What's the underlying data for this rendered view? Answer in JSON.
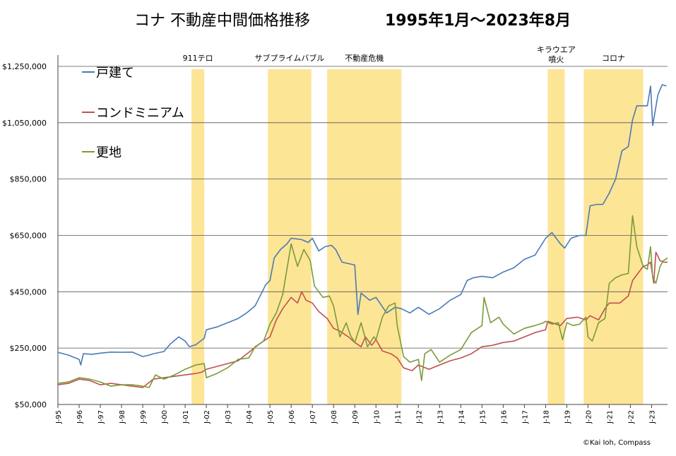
{
  "chart_data": {
    "type": "line",
    "title": "コナ 不動産中間価格推移",
    "subtitle": "1995年1月～2023年8月",
    "xlabel": "",
    "ylabel": "",
    "ylim": [
      50000,
      1290000
    ],
    "xlim": [
      1995.0,
      2023.75
    ],
    "yticks": [
      50000,
      250000,
      450000,
      650000,
      850000,
      1050000,
      1250000
    ],
    "ytick_labels": [
      "$50,000",
      "$250,000",
      "$450,000",
      "$650,000",
      "$850,000",
      "$1,050,000",
      "$1,250,000"
    ],
    "xtick_labels": [
      "J-95",
      "J-96",
      "J-97",
      "J-98",
      "J-99",
      "J-00",
      "J-01",
      "J-02",
      "J-03",
      "J-04",
      "J-05",
      "J-06",
      "J-07",
      "J-08",
      "J-09",
      "J-10",
      "J-11",
      "J-12",
      "J-13",
      "J-14",
      "J-15",
      "J-16",
      "J-17",
      "J-18",
      "J-19",
      "J-20",
      "J-21",
      "J-22",
      "J-23"
    ],
    "xtick_values": [
      1995,
      1996,
      1997,
      1998,
      1999,
      2000,
      2001,
      2002,
      2003,
      2004,
      2005,
      2006,
      2007,
      2008,
      2009,
      2010,
      2011,
      2012,
      2013,
      2014,
      2015,
      2016,
      2017,
      2018,
      2019,
      2020,
      2021,
      2022,
      2023
    ],
    "grid": true,
    "legend_position": "top-left",
    "bands": [
      {
        "label": "911テロ",
        "start": 2001.3,
        "end": 2001.9
      },
      {
        "label": "サブプライムバブル",
        "start": 2004.9,
        "end": 2006.95
      },
      {
        "label": "不動産危機",
        "start": 2007.7,
        "end": 2011.2
      },
      {
        "label": "キラウエア噴火",
        "start": 2018.1,
        "end": 2018.9
      },
      {
        "label": "コロナ",
        "start": 2019.8,
        "end": 2022.6
      }
    ],
    "series": [
      {
        "name": "戸建て",
        "color": "#4a7ab5",
        "points": [
          [
            1995,
            235000
          ],
          [
            1995.5,
            225000
          ],
          [
            1996,
            210000
          ],
          [
            1996.08,
            190000
          ],
          [
            1996.2,
            230000
          ],
          [
            1996.6,
            228000
          ],
          [
            1997,
            232000
          ],
          [
            1997.5,
            236000
          ],
          [
            1998,
            235000
          ],
          [
            1998.5,
            236000
          ],
          [
            1999,
            220000
          ],
          [
            1999.3,
            225000
          ],
          [
            1999.5,
            230000
          ],
          [
            2000,
            238000
          ],
          [
            2000.3,
            265000
          ],
          [
            2000.7,
            290000
          ],
          [
            2001,
            275000
          ],
          [
            2001.2,
            255000
          ],
          [
            2001.5,
            262000
          ],
          [
            2001.9,
            285000
          ],
          [
            2002,
            315000
          ],
          [
            2002.5,
            325000
          ],
          [
            2003,
            340000
          ],
          [
            2003.5,
            355000
          ],
          [
            2003.9,
            375000
          ],
          [
            2004.3,
            400000
          ],
          [
            2004.5,
            430000
          ],
          [
            2004.8,
            475000
          ],
          [
            2005,
            490000
          ],
          [
            2005.2,
            570000
          ],
          [
            2005.5,
            600000
          ],
          [
            2005.8,
            620000
          ],
          [
            2006,
            640000
          ],
          [
            2006.5,
            635000
          ],
          [
            2006.8,
            625000
          ],
          [
            2007,
            640000
          ],
          [
            2007.3,
            595000
          ],
          [
            2007.6,
            610000
          ],
          [
            2007.9,
            615000
          ],
          [
            2008.1,
            600000
          ],
          [
            2008.4,
            555000
          ],
          [
            2008.7,
            550000
          ],
          [
            2009,
            545000
          ],
          [
            2009.15,
            370000
          ],
          [
            2009.3,
            445000
          ],
          [
            2009.7,
            420000
          ],
          [
            2010,
            430000
          ],
          [
            2010.5,
            375000
          ],
          [
            2010.9,
            395000
          ],
          [
            2011.2,
            390000
          ],
          [
            2011.6,
            375000
          ],
          [
            2012,
            395000
          ],
          [
            2012.5,
            370000
          ],
          [
            2013,
            390000
          ],
          [
            2013.5,
            420000
          ],
          [
            2014,
            440000
          ],
          [
            2014.3,
            490000
          ],
          [
            2014.6,
            500000
          ],
          [
            2015,
            505000
          ],
          [
            2015.5,
            500000
          ],
          [
            2016,
            520000
          ],
          [
            2016.5,
            535000
          ],
          [
            2017,
            565000
          ],
          [
            2017.5,
            580000
          ],
          [
            2018,
            640000
          ],
          [
            2018.3,
            660000
          ],
          [
            2018.7,
            620000
          ],
          [
            2018.9,
            605000
          ],
          [
            2019.2,
            640000
          ],
          [
            2019.6,
            650000
          ],
          [
            2019.9,
            650000
          ],
          [
            2020.1,
            755000
          ],
          [
            2020.4,
            760000
          ],
          [
            2020.7,
            760000
          ],
          [
            2021,
            800000
          ],
          [
            2021.3,
            850000
          ],
          [
            2021.6,
            950000
          ],
          [
            2021.9,
            965000
          ],
          [
            2022.1,
            1060000
          ],
          [
            2022.3,
            1110000
          ],
          [
            2022.6,
            1110000
          ],
          [
            2022.8,
            1110000
          ],
          [
            2022.95,
            1180000
          ],
          [
            2023.05,
            1040000
          ],
          [
            2023.3,
            1150000
          ],
          [
            2023.5,
            1185000
          ],
          [
            2023.7,
            1180000
          ]
        ]
      },
      {
        "name": "コンドミニアム",
        "color": "#c0504d",
        "points": [
          [
            1995,
            120000
          ],
          [
            1995.5,
            125000
          ],
          [
            1996,
            140000
          ],
          [
            1996.5,
            135000
          ],
          [
            1997,
            120000
          ],
          [
            1997.5,
            125000
          ],
          [
            1998,
            120000
          ],
          [
            1998.5,
            115000
          ],
          [
            1999,
            110000
          ],
          [
            1999.5,
            140000
          ],
          [
            2000,
            145000
          ],
          [
            2000.5,
            150000
          ],
          [
            2001,
            155000
          ],
          [
            2001.5,
            160000
          ],
          [
            2001.8,
            165000
          ],
          [
            2002,
            175000
          ],
          [
            2002.5,
            185000
          ],
          [
            2003,
            195000
          ],
          [
            2003.5,
            205000
          ],
          [
            2004,
            235000
          ],
          [
            2004.5,
            265000
          ],
          [
            2005,
            290000
          ],
          [
            2005.3,
            350000
          ],
          [
            2005.6,
            390000
          ],
          [
            2006,
            430000
          ],
          [
            2006.3,
            410000
          ],
          [
            2006.5,
            450000
          ],
          [
            2006.7,
            420000
          ],
          [
            2007,
            410000
          ],
          [
            2007.3,
            380000
          ],
          [
            2007.7,
            355000
          ],
          [
            2008,
            320000
          ],
          [
            2008.3,
            310000
          ],
          [
            2008.7,
            290000
          ],
          [
            2009,
            270000
          ],
          [
            2009.3,
            255000
          ],
          [
            2009.5,
            290000
          ],
          [
            2009.8,
            260000
          ],
          [
            2010,
            280000
          ],
          [
            2010.3,
            240000
          ],
          [
            2010.7,
            230000
          ],
          [
            2011,
            215000
          ],
          [
            2011.3,
            180000
          ],
          [
            2011.7,
            170000
          ],
          [
            2012,
            190000
          ],
          [
            2012.5,
            175000
          ],
          [
            2013,
            190000
          ],
          [
            2013.5,
            205000
          ],
          [
            2014,
            215000
          ],
          [
            2014.5,
            230000
          ],
          [
            2015,
            255000
          ],
          [
            2015.5,
            260000
          ],
          [
            2016,
            270000
          ],
          [
            2016.5,
            275000
          ],
          [
            2017,
            290000
          ],
          [
            2017.5,
            305000
          ],
          [
            2018,
            315000
          ],
          [
            2018.1,
            345000
          ],
          [
            2018.3,
            340000
          ],
          [
            2018.7,
            330000
          ],
          [
            2019,
            355000
          ],
          [
            2019.5,
            360000
          ],
          [
            2019.9,
            350000
          ],
          [
            2020.1,
            365000
          ],
          [
            2020.5,
            350000
          ],
          [
            2020.8,
            390000
          ],
          [
            2021,
            410000
          ],
          [
            2021.5,
            410000
          ],
          [
            2021.9,
            435000
          ],
          [
            2022.1,
            490000
          ],
          [
            2022.3,
            510000
          ],
          [
            2022.6,
            540000
          ],
          [
            2022.8,
            545000
          ],
          [
            2022.95,
            555000
          ],
          [
            2023.1,
            480000
          ],
          [
            2023.2,
            590000
          ],
          [
            2023.4,
            560000
          ],
          [
            2023.6,
            555000
          ],
          [
            2023.75,
            555000
          ]
        ]
      },
      {
        "name": "更地",
        "color": "#7a9a3a",
        "points": [
          [
            1995,
            125000
          ],
          [
            1995.5,
            130000
          ],
          [
            1996,
            145000
          ],
          [
            1996.5,
            140000
          ],
          [
            1997,
            130000
          ],
          [
            1997.5,
            115000
          ],
          [
            1998,
            120000
          ],
          [
            1998.5,
            120000
          ],
          [
            1999,
            115000
          ],
          [
            1999.3,
            110000
          ],
          [
            1999.6,
            155000
          ],
          [
            2000,
            140000
          ],
          [
            2000.5,
            155000
          ],
          [
            2001,
            175000
          ],
          [
            2001.5,
            190000
          ],
          [
            2001.9,
            195000
          ],
          [
            2002,
            145000
          ],
          [
            2002.5,
            160000
          ],
          [
            2003,
            180000
          ],
          [
            2003.5,
            210000
          ],
          [
            2004,
            215000
          ],
          [
            2004.3,
            255000
          ],
          [
            2004.7,
            275000
          ],
          [
            2005,
            335000
          ],
          [
            2005.3,
            375000
          ],
          [
            2005.6,
            440000
          ],
          [
            2006,
            620000
          ],
          [
            2006.3,
            540000
          ],
          [
            2006.6,
            600000
          ],
          [
            2006.9,
            560000
          ],
          [
            2007.1,
            470000
          ],
          [
            2007.5,
            430000
          ],
          [
            2007.8,
            435000
          ],
          [
            2008,
            400000
          ],
          [
            2008.3,
            290000
          ],
          [
            2008.6,
            340000
          ],
          [
            2008.8,
            295000
          ],
          [
            2009,
            270000
          ],
          [
            2009.3,
            340000
          ],
          [
            2009.6,
            255000
          ],
          [
            2009.9,
            290000
          ],
          [
            2010,
            280000
          ],
          [
            2010.3,
            360000
          ],
          [
            2010.6,
            400000
          ],
          [
            2010.9,
            410000
          ],
          [
            2011,
            330000
          ],
          [
            2011.3,
            220000
          ],
          [
            2011.6,
            200000
          ],
          [
            2012,
            210000
          ],
          [
            2012.15,
            135000
          ],
          [
            2012.3,
            230000
          ],
          [
            2012.6,
            245000
          ],
          [
            2013,
            200000
          ],
          [
            2013.5,
            225000
          ],
          [
            2014,
            245000
          ],
          [
            2014.5,
            305000
          ],
          [
            2015,
            330000
          ],
          [
            2015.1,
            430000
          ],
          [
            2015.4,
            340000
          ],
          [
            2015.8,
            360000
          ],
          [
            2016,
            335000
          ],
          [
            2016.5,
            300000
          ],
          [
            2017,
            320000
          ],
          [
            2017.5,
            330000
          ],
          [
            2017.9,
            340000
          ],
          [
            2018,
            345000
          ],
          [
            2018.3,
            335000
          ],
          [
            2018.6,
            340000
          ],
          [
            2018.8,
            280000
          ],
          [
            2019,
            340000
          ],
          [
            2019.3,
            330000
          ],
          [
            2019.6,
            335000
          ],
          [
            2019.9,
            360000
          ],
          [
            2020,
            290000
          ],
          [
            2020.2,
            275000
          ],
          [
            2020.5,
            340000
          ],
          [
            2020.8,
            355000
          ],
          [
            2021,
            480000
          ],
          [
            2021.3,
            500000
          ],
          [
            2021.6,
            510000
          ],
          [
            2021.9,
            515000
          ],
          [
            2022.1,
            720000
          ],
          [
            2022.3,
            610000
          ],
          [
            2022.6,
            540000
          ],
          [
            2022.8,
            530000
          ],
          [
            2022.95,
            610000
          ],
          [
            2023.05,
            500000
          ],
          [
            2023.2,
            480000
          ],
          [
            2023.4,
            540000
          ],
          [
            2023.55,
            560000
          ],
          [
            2023.75,
            570000
          ]
        ]
      }
    ]
  },
  "credit": "©Kai Ioh, Compass"
}
